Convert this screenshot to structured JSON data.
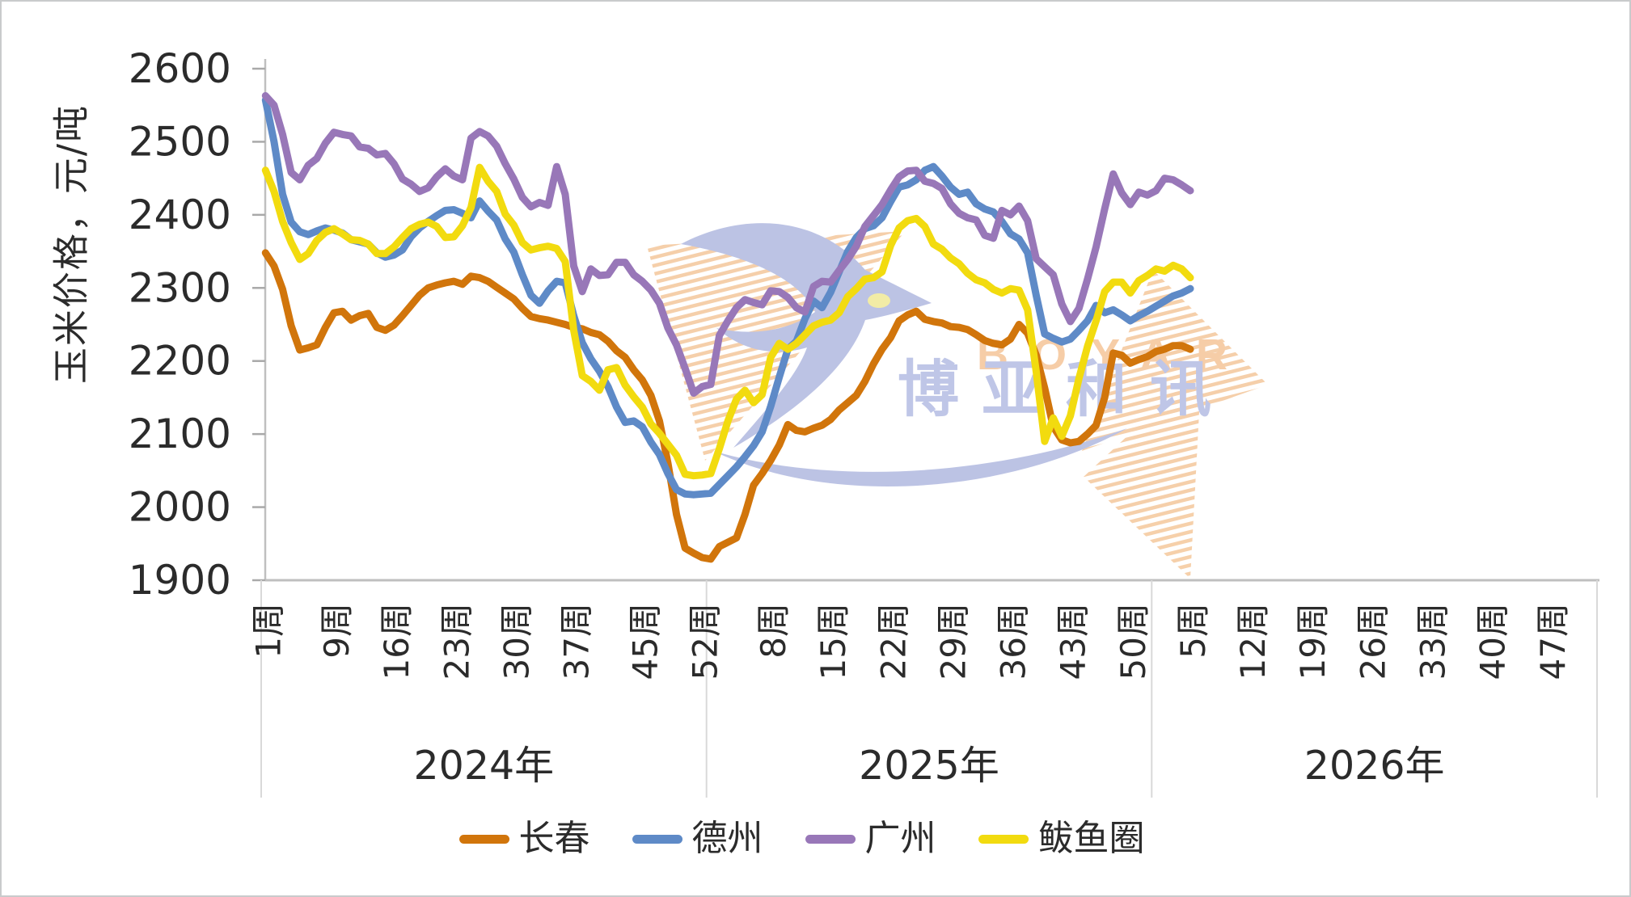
{
  "y_axis": {
    "title": "玉米价格，元/吨",
    "ticks": [
      1900,
      2000,
      2100,
      2200,
      2300,
      2400,
      2500,
      2600
    ]
  },
  "x_axis": {
    "years": [
      {
        "label": "2024年",
        "weeks": 52,
        "week_labels": [
          "1周",
          "9周",
          "16周",
          "23周",
          "30周",
          "37周",
          "45周",
          "52周"
        ],
        "label_weeks": [
          1,
          9,
          16,
          23,
          30,
          37,
          45,
          52
        ]
      },
      {
        "label": "2025年",
        "weeks": 52,
        "week_labels": [
          "8周",
          "15周",
          "22周",
          "29周",
          "36周",
          "43周",
          "50周"
        ],
        "label_weeks": [
          8,
          15,
          22,
          29,
          36,
          43,
          50
        ]
      },
      {
        "label": "2026年",
        "weeks": 52,
        "week_labels": [
          "5周",
          "12周",
          "19周",
          "26周",
          "33周",
          "40周",
          "47周"
        ],
        "label_weeks": [
          5,
          12,
          19,
          26,
          33,
          40,
          47
        ]
      }
    ]
  },
  "legend": [
    {
      "label": "长春",
      "color": "#d1750b"
    },
    {
      "label": "德州",
      "color": "#5e8ac7"
    },
    {
      "label": "广州",
      "color": "#9877b8"
    },
    {
      "label": "鲅鱼圈",
      "color": "#f2db0f"
    }
  ],
  "watermark": {
    "latin": "BOYAR",
    "cjk": "博亚和讯",
    "bird_color": "#b9c0e3",
    "stripe_color": "#f5cda6",
    "latin_color": "#f6cba3",
    "cjk_color": "#bcc3e6",
    "eye_color": "#f2eca2"
  },
  "chart_data": {
    "type": "line",
    "title": "",
    "xlabel": "",
    "ylabel": "玉米价格，元/吨",
    "ylim": [
      1900,
      2600
    ],
    "ytick_step": 100,
    "grid": false,
    "legend_position": "bottom",
    "x_structure": "weekly categories grouped by year (2024: 52 wks, 2025: 52 wks, 2026: 52 wks, data ends 2026 wk5)",
    "series": [
      {
        "name": "长春",
        "color": "#d1750b",
        "values_2024": [
          2348,
          2330,
          2298,
          2248,
          2215,
          2218,
          2222,
          2246,
          2266,
          2268,
          2256,
          2262,
          2265,
          2246,
          2242,
          2249,
          2262,
          2276,
          2290,
          2300,
          2304,
          2307,
          2309,
          2305,
          2316,
          2314,
          2309,
          2301,
          2293,
          2285,
          2272,
          2261,
          2258,
          2256,
          2253,
          2250,
          2246,
          2244,
          2239,
          2236,
          2227,
          2214,
          2205,
          2188,
          2174,
          2153,
          2118,
          2060,
          1990,
          1944,
          1937,
          1931
        ],
        "values_2025": [
          1929,
          1946,
          1952,
          1958,
          1990,
          2030,
          2046,
          2064,
          2085,
          2113,
          2105,
          2103,
          2108,
          2112,
          2120,
          2133,
          2143,
          2153,
          2172,
          2196,
          2216,
          2232,
          2255,
          2263,
          2268,
          2257,
          2254,
          2252,
          2247,
          2246,
          2243,
          2236,
          2228,
          2224,
          2222,
          2230,
          2250,
          2238,
          2208,
          2163,
          2110,
          2092,
          2088,
          2090,
          2100,
          2112,
          2150,
          2211,
          2208,
          2197,
          2202,
          2206
        ],
        "values_2026": [
          2213,
          2216,
          2221,
          2221,
          2216
        ]
      },
      {
        "name": "德州",
        "color": "#5e8ac7",
        "values_2024": [
          2557,
          2500,
          2428,
          2390,
          2377,
          2373,
          2378,
          2382,
          2379,
          2375,
          2366,
          2363,
          2360,
          2348,
          2342,
          2345,
          2352,
          2370,
          2382,
          2391,
          2399,
          2406,
          2407,
          2402,
          2396,
          2419,
          2405,
          2393,
          2367,
          2349,
          2318,
          2290,
          2279,
          2296,
          2309,
          2307,
          2262,
          2225,
          2203,
          2186,
          2165,
          2137,
          2116,
          2118,
          2110,
          2089,
          2072,
          2046,
          2024,
          2018,
          2017,
          2018
        ],
        "values_2025": [
          2019,
          2031,
          2043,
          2055,
          2069,
          2084,
          2103,
          2138,
          2178,
          2216,
          2227,
          2258,
          2282,
          2273,
          2294,
          2322,
          2350,
          2369,
          2381,
          2385,
          2396,
          2418,
          2438,
          2441,
          2448,
          2461,
          2466,
          2453,
          2438,
          2428,
          2431,
          2415,
          2408,
          2404,
          2391,
          2374,
          2367,
          2348,
          2290,
          2237,
          2231,
          2226,
          2230,
          2242,
          2255,
          2276,
          2266,
          2270,
          2263,
          2255,
          2262,
          2268
        ],
        "values_2026": [
          2275,
          2282,
          2289,
          2293,
          2299
        ]
      },
      {
        "name": "广州",
        "color": "#9877b8",
        "values_2024": [
          2563,
          2550,
          2510,
          2458,
          2448,
          2468,
          2477,
          2498,
          2513,
          2510,
          2508,
          2493,
          2491,
          2482,
          2484,
          2470,
          2449,
          2442,
          2432,
          2437,
          2452,
          2463,
          2453,
          2448,
          2505,
          2514,
          2508,
          2494,
          2470,
          2449,
          2424,
          2411,
          2417,
          2413,
          2466,
          2428,
          2330,
          2295,
          2326,
          2317,
          2318,
          2335,
          2335,
          2318,
          2309,
          2297,
          2279,
          2245,
          2222,
          2190,
          2156,
          2165
        ],
        "values_2025": [
          2168,
          2235,
          2255,
          2273,
          2284,
          2280,
          2277,
          2296,
          2295,
          2287,
          2273,
          2267,
          2302,
          2309,
          2308,
          2324,
          2339,
          2357,
          2384,
          2399,
          2414,
          2434,
          2452,
          2460,
          2461,
          2446,
          2443,
          2436,
          2415,
          2402,
          2396,
          2393,
          2372,
          2368,
          2406,
          2400,
          2412,
          2392,
          2340,
          2329,
          2318,
          2278,
          2254,
          2272,
          2312,
          2356,
          2408,
          2456,
          2430,
          2414,
          2431,
          2427
        ],
        "values_2026": [
          2433,
          2450,
          2448,
          2441,
          2433
        ]
      },
      {
        "name": "鲅鱼圈",
        "color": "#f2db0f",
        "values_2024": [
          2461,
          2432,
          2391,
          2362,
          2339,
          2347,
          2365,
          2376,
          2381,
          2374,
          2366,
          2365,
          2360,
          2347,
          2347,
          2356,
          2369,
          2381,
          2387,
          2390,
          2384,
          2369,
          2370,
          2385,
          2410,
          2465,
          2446,
          2432,
          2401,
          2386,
          2362,
          2352,
          2355,
          2357,
          2354,
          2336,
          2242,
          2180,
          2172,
          2160,
          2188,
          2191,
          2167,
          2151,
          2137,
          2114,
          2101,
          2086,
          2071,
          2045,
          2043,
          2044
        ],
        "values_2025": [
          2046,
          2080,
          2118,
          2148,
          2160,
          2143,
          2154,
          2205,
          2224,
          2216,
          2224,
          2236,
          2248,
          2253,
          2256,
          2266,
          2288,
          2299,
          2312,
          2314,
          2322,
          2358,
          2382,
          2392,
          2395,
          2384,
          2360,
          2353,
          2341,
          2333,
          2320,
          2311,
          2307,
          2298,
          2293,
          2299,
          2297,
          2270,
          2186,
          2090,
          2122,
          2097,
          2125,
          2176,
          2220,
          2255,
          2295,
          2308,
          2308,
          2293,
          2310,
          2317
        ],
        "values_2026": [
          2326,
          2323,
          2331,
          2326,
          2314
        ]
      }
    ]
  }
}
